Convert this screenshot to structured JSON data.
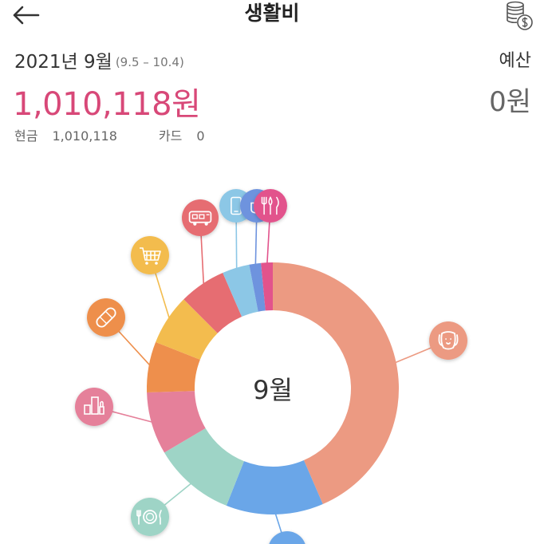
{
  "header": {
    "title": "생활비",
    "back_icon": "arrow-left-icon",
    "settings_icon": "coins-dollar-icon"
  },
  "summary": {
    "period": "2021년 9월",
    "range": "(9.5 – 10.4)",
    "total": "1,010,118원",
    "cash_label": "현금",
    "cash_value": "1,010,118",
    "card_label": "카드",
    "card_value": "0",
    "budget_label": "예산",
    "budget_value": "0원"
  },
  "chart_data": {
    "type": "pie",
    "center_label": "9월",
    "total_value": 1010118,
    "slices": [
      {
        "icon": "dog-icon",
        "percent": 43.5,
        "color": "#EC9A82"
      },
      {
        "icon": "pet-bowl-icon",
        "percent": 12.5,
        "color": "#6AA6E8"
      },
      {
        "icon": "plate-fork-knife-icon",
        "percent": 10.5,
        "color": "#9ED4C6"
      },
      {
        "icon": "cosmetics-icon",
        "percent": 8.0,
        "color": "#E5809A"
      },
      {
        "icon": "bandage-icon",
        "percent": 6.5,
        "color": "#EE8F4C"
      },
      {
        "icon": "shopping-cart-icon",
        "percent": 6.5,
        "color": "#F3BC4E"
      },
      {
        "icon": "bus-icon",
        "percent": 6.0,
        "color": "#E66D72"
      },
      {
        "icon": "phone-icon",
        "percent": 3.5,
        "color": "#8CC7E6"
      },
      {
        "icon": "cafe-icon",
        "percent": 1.5,
        "color": "#6E93DE"
      },
      {
        "icon": "food-utensils-icon",
        "percent": 1.5,
        "color": "#E2538C"
      }
    ]
  }
}
